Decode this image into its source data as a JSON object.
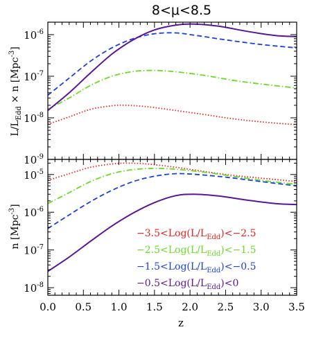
{
  "title": "8<μ<8.5",
  "colors": {
    "red": "#e8221c",
    "green": "#66dd22",
    "blue": "#1a3fe0",
    "purple": "#5a1496",
    "axis": "#000000"
  },
  "chart_data": [
    {
      "type": "line",
      "panel": "top",
      "ylabel_parts": {
        "pre": "L/L",
        "sub": "Edd",
        "post": " × n  [Mpc",
        "sup": "-3",
        "end": "]"
      },
      "xlim": [
        0,
        3.5
      ],
      "ylim_log10": [
        -9,
        -5.7
      ],
      "yscale": "log",
      "ytick_labels": [
        {
          "exp": -9,
          "base": "10",
          "sup": "-9"
        },
        {
          "exp": -8,
          "base": "10",
          "sup": "-8"
        },
        {
          "exp": -7,
          "base": "10",
          "sup": "-7"
        },
        {
          "exp": -6,
          "base": "10",
          "sup": "-6"
        }
      ],
      "series": [
        {
          "color": "red",
          "style": "dotted",
          "x": [
            0,
            0.3,
            0.6,
            0.9,
            1.1,
            1.4,
            1.8,
            2.2,
            2.6,
            3.0,
            3.5
          ],
          "y": [
            7e-09,
            1.05e-08,
            1.6e-08,
            1.95e-08,
            2e-08,
            1.85e-08,
            1.5e-08,
            1.2e-08,
            9.5e-09,
            8e-09,
            6.8e-09
          ]
        },
        {
          "color": "green",
          "style": "dashdot",
          "x": [
            0,
            0.3,
            0.6,
            0.9,
            1.2,
            1.5,
            1.8,
            2.2,
            2.6,
            3.0,
            3.5
          ],
          "y": [
            1.6e-08,
            3e-08,
            6e-08,
            1e-07,
            1.3e-07,
            1.38e-07,
            1.28e-07,
            1.05e-07,
            8e-08,
            6.5e-08,
            5.2e-08
          ]
        },
        {
          "color": "blue",
          "style": "dashed",
          "x": [
            0,
            0.3,
            0.6,
            0.9,
            1.2,
            1.5,
            1.8,
            2.1,
            2.5,
            3.0,
            3.5
          ],
          "y": [
            3.5e-08,
            9e-08,
            2.3e-07,
            4.8e-07,
            8e-07,
            1.05e-06,
            1.1e-06,
            9.5e-07,
            7.5e-07,
            5.8e-07,
            4.8e-07
          ]
        },
        {
          "color": "purple",
          "style": "solid",
          "x": [
            0,
            0.3,
            0.6,
            0.9,
            1.2,
            1.5,
            1.8,
            2.05,
            2.4,
            2.8,
            3.2,
            3.5
          ],
          "y": [
            1.5e-08,
            4e-08,
            1.2e-07,
            3.4e-07,
            7.5e-07,
            1.3e-06,
            1.7e-06,
            1.8e-06,
            1.6e-06,
            1.2e-06,
            9.5e-07,
            9e-07
          ]
        }
      ]
    },
    {
      "type": "line",
      "panel": "bottom",
      "ylabel_parts": {
        "pre": "n  [Mpc",
        "sup": "-3",
        "end": "]"
      },
      "xlabel": "z",
      "xlim": [
        0,
        3.5
      ],
      "xtick_labels": [
        "0.0",
        "0.5",
        "1.0",
        "1.5",
        "2.0",
        "2.5",
        "3.0",
        "3.5"
      ],
      "ylim_log10": [
        -8.2,
        -4.6
      ],
      "yscale": "log",
      "ytick_labels": [
        {
          "exp": -8,
          "base": "10",
          "sup": "-8"
        },
        {
          "exp": -7,
          "base": "10",
          "sup": "-7"
        },
        {
          "exp": -6,
          "base": "10",
          "sup": "-6"
        },
        {
          "exp": -5,
          "base": "10",
          "sup": "-5"
        }
      ],
      "series": [
        {
          "color": "red",
          "style": "dotted",
          "x": [
            0,
            0.3,
            0.6,
            0.9,
            1.1,
            1.4,
            1.8,
            2.2,
            2.6,
            3.0,
            3.5
          ],
          "y": [
            7e-06,
            1.05e-05,
            1.55e-05,
            1.9e-05,
            2e-05,
            1.9e-05,
            1.55e-05,
            1.2e-05,
            9.5e-06,
            8e-06,
            6.5e-06
          ]
        },
        {
          "color": "green",
          "style": "dashdot",
          "x": [
            0,
            0.3,
            0.6,
            0.9,
            1.2,
            1.5,
            1.8,
            2.2,
            2.6,
            3.0,
            3.5
          ],
          "y": [
            1.7e-06,
            3.3e-06,
            6.5e-06,
            1.05e-05,
            1.35e-05,
            1.45e-05,
            1.38e-05,
            1.15e-05,
            9e-06,
            7e-06,
            5.5e-06
          ]
        },
        {
          "color": "blue",
          "style": "dashed",
          "x": [
            0,
            0.3,
            0.6,
            0.9,
            1.2,
            1.5,
            1.8,
            2.1,
            2.5,
            3.0,
            3.5
          ],
          "y": [
            3.7e-07,
            8.5e-07,
            1.9e-06,
            3.8e-06,
            6.5e-06,
            9e-06,
            1.05e-05,
            1e-05,
            8.5e-06,
            6.5e-06,
            5e-06
          ]
        },
        {
          "color": "purple",
          "style": "solid",
          "x": [
            0,
            0.3,
            0.6,
            0.9,
            1.2,
            1.5,
            1.8,
            2.05,
            2.4,
            2.8,
            3.2,
            3.5
          ],
          "y": [
            2.7e-08,
            6.5e-08,
            1.7e-07,
            4.3e-07,
            9.5e-07,
            1.8e-06,
            2.75e-06,
            3e-06,
            2.7e-06,
            2.1e-06,
            1.7e-06,
            1.6e-06
          ]
        }
      ],
      "legend": [
        {
          "color": "red",
          "pre": "−3.5<Log(L/L",
          "sub": "Edd",
          "post": ")<−2.5"
        },
        {
          "color": "green",
          "pre": "−2.5<Log(L/L",
          "sub": "Edd",
          "post": ")<−1.5"
        },
        {
          "color": "blue",
          "pre": "−1.5<Log(L/L",
          "sub": "Edd",
          "post": ")<−0.5"
        },
        {
          "color": "purple",
          "pre": "−0.5<Log(L/L",
          "sub": "Edd",
          "post": ")<0"
        }
      ]
    }
  ]
}
